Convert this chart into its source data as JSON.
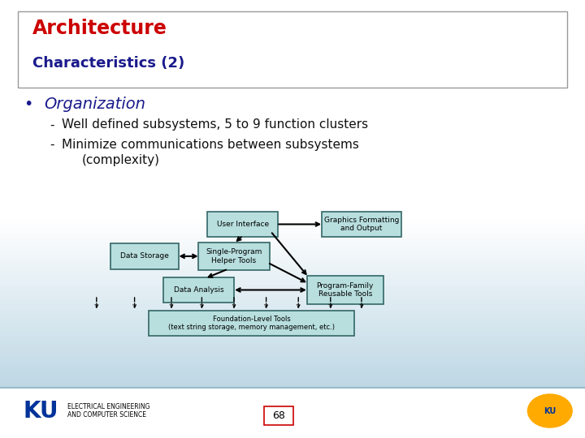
{
  "title_line1": "Architecture",
  "title_line2": "Characteristics (2)",
  "title_line1_color": "#CC0000",
  "title_line2_color": "#1a1a8c",
  "bullet_color": "#1a1a8c",
  "bullet_text": "Organization",
  "sub1": "Well defined subsystems, 5 to 9 function clusters",
  "sub2_line1": "Minimize communications between subsystems",
  "sub2_line2": "(complexity)",
  "bg_color_top": "#ffffff",
  "bg_color_bottom": "#aaccdd",
  "box_fill": "#b8dede",
  "box_edge": "#336666",
  "title_box_edge": "#999999",
  "footer_text1": "ELECTRICAL ENGINEERING",
  "footer_text2": "AND COMPUTER SCIENCE",
  "page_number": "68",
  "labels": {
    "user_interface": "User Interface",
    "graphics": "Graphics Formatting\nand Output",
    "data_storage": "Data Storage",
    "single_program": "Single-Program\nHelper Tools",
    "data_analysis": "Data Analysis",
    "program_family": "Program-Family\nReusable Tools",
    "foundation": "Foundation-Level Tools\n(text string storage, memory management, etc.)"
  },
  "boxes": {
    "user_interface": [
      0.415,
      0.488,
      0.115,
      0.052
    ],
    "graphics": [
      0.618,
      0.488,
      0.13,
      0.052
    ],
    "data_storage": [
      0.247,
      0.415,
      0.11,
      0.052
    ],
    "single_program": [
      0.4,
      0.415,
      0.115,
      0.058
    ],
    "data_analysis": [
      0.34,
      0.338,
      0.115,
      0.052
    ],
    "program_family": [
      0.59,
      0.338,
      0.125,
      0.058
    ],
    "foundation": [
      0.43,
      0.262,
      0.345,
      0.052
    ]
  }
}
